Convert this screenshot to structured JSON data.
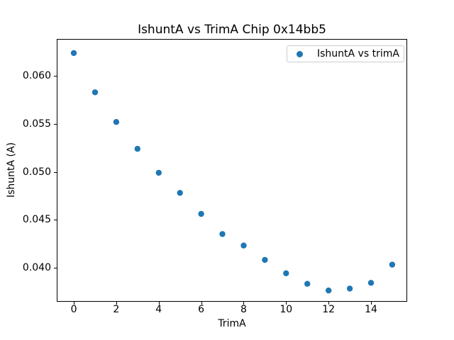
{
  "colors": {
    "marker": "#1f77b4",
    "spine": "#000000",
    "legend_border": "#cccccc",
    "background": "#ffffff",
    "text": "#000000"
  },
  "chart_data": {
    "type": "scatter",
    "title": "IshuntA vs TrimA Chip 0x14bb5",
    "xlabel": "TrimA",
    "ylabel": "IshuntA (A)",
    "legend": [
      "IshuntA vs trimA"
    ],
    "legend_position": "upper right",
    "grid": false,
    "xlim": [
      -0.77,
      15.67
    ],
    "ylim": [
      0.0365,
      0.0638
    ],
    "xticks": [
      0,
      2,
      4,
      6,
      8,
      10,
      12,
      14
    ],
    "xtick_labels": [
      "0",
      "2",
      "4",
      "6",
      "8",
      "10",
      "12",
      "14"
    ],
    "yticks": [
      0.04,
      0.045,
      0.05,
      0.055,
      0.06
    ],
    "ytick_labels": [
      "0.040",
      "0.045",
      "0.050",
      "0.055",
      "0.060"
    ],
    "marker_radius_px": 4.2,
    "series": [
      {
        "name": "IshuntA vs trimA",
        "x": [
          0,
          1,
          2,
          3,
          4,
          5,
          6,
          7,
          8,
          9,
          10,
          11,
          12,
          13,
          14,
          15
        ],
        "y": [
          0.0624,
          0.0583,
          0.0552,
          0.0524,
          0.0499,
          0.0478,
          0.0456,
          0.0435,
          0.0423,
          0.0408,
          0.0394,
          0.0383,
          0.0376,
          0.0378,
          0.0384,
          0.0403
        ]
      }
    ]
  }
}
